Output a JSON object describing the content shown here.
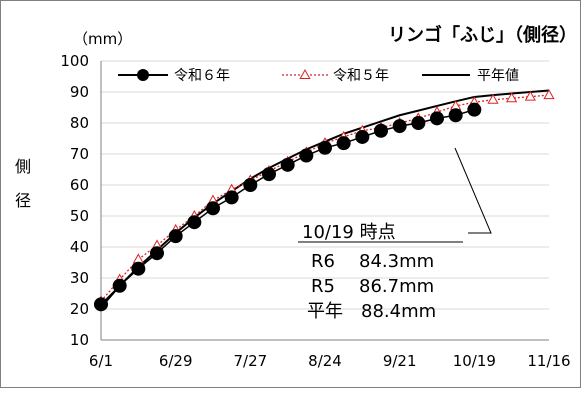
{
  "chart_data": {
    "type": "line",
    "title": "リンゴ「ふじ」（側径）",
    "unit_label": "（mm）",
    "ylabel_chars": [
      "側",
      "径"
    ],
    "x_ticks": [
      "6/1",
      "6/29",
      "7/27",
      "8/24",
      "9/21",
      "10/19",
      "11/16"
    ],
    "ylim": [
      10,
      100
    ],
    "y_ticks": [
      10,
      20,
      30,
      40,
      50,
      60,
      70,
      80,
      90,
      100
    ],
    "legend_position": "top",
    "series": [
      {
        "name": "令和６年",
        "style": "black-line-filled-circles",
        "color": "#000000",
        "x": [
          "6/1",
          "6/8",
          "6/15",
          "6/22",
          "6/29",
          "7/6",
          "7/13",
          "7/20",
          "7/27",
          "8/3",
          "8/10",
          "8/17",
          "8/24",
          "8/31",
          "9/7",
          "9/14",
          "9/21",
          "9/28",
          "10/5",
          "10/12",
          "10/19"
        ],
        "values": [
          21.5,
          27.5,
          33.0,
          38.0,
          43.5,
          48.0,
          52.5,
          56.0,
          60.0,
          63.5,
          66.5,
          69.5,
          72.0,
          73.5,
          75.5,
          77.5,
          79.0,
          80.0,
          81.5,
          82.5,
          84.3
        ]
      },
      {
        "name": "令和５年",
        "style": "red-dotted-line-open-triangles",
        "color": "#e02020",
        "x": [
          "6/1",
          "6/8",
          "6/15",
          "6/22",
          "6/29",
          "7/6",
          "7/13",
          "7/20",
          "7/27",
          "8/3",
          "8/10",
          "8/17",
          "8/24",
          "8/31",
          "9/7",
          "9/14",
          "9/21",
          "9/28",
          "10/5",
          "10/12",
          "10/19",
          "10/26",
          "11/2",
          "11/9",
          "11/16"
        ],
        "values": [
          22.5,
          29.5,
          36.0,
          40.5,
          45.5,
          50.0,
          55.0,
          58.5,
          61.5,
          64.5,
          67.5,
          70.5,
          73.5,
          75.5,
          77.5,
          78.5,
          80.0,
          81.5,
          83.5,
          85.5,
          86.7,
          87.5,
          88.0,
          88.5,
          89.0
        ]
      },
      {
        "name": "平年値",
        "style": "black-solid-line",
        "color": "#000000",
        "x": [
          "6/1",
          "6/8",
          "6/15",
          "6/22",
          "6/29",
          "7/6",
          "7/13",
          "7/20",
          "7/27",
          "8/3",
          "8/10",
          "8/17",
          "8/24",
          "8/31",
          "9/7",
          "9/14",
          "9/21",
          "9/28",
          "10/5",
          "10/12",
          "10/19",
          "10/26",
          "11/2",
          "11/9",
          "11/16"
        ],
        "values": [
          20.5,
          27.5,
          33.5,
          39.0,
          44.5,
          49.5,
          54.0,
          58.0,
          62.0,
          65.5,
          68.5,
          71.5,
          74.0,
          76.5,
          78.5,
          80.5,
          82.5,
          84.0,
          85.5,
          87.0,
          88.4,
          89.0,
          89.5,
          90.0,
          90.5
        ]
      }
    ],
    "annotation": {
      "heading": "10/19 時点",
      "lines": [
        {
          "label": "R6",
          "value": "84.3mm"
        },
        {
          "label": "R5",
          "value": "86.7mm"
        },
        {
          "label": "平年",
          "value": "88.4mm"
        }
      ]
    }
  }
}
